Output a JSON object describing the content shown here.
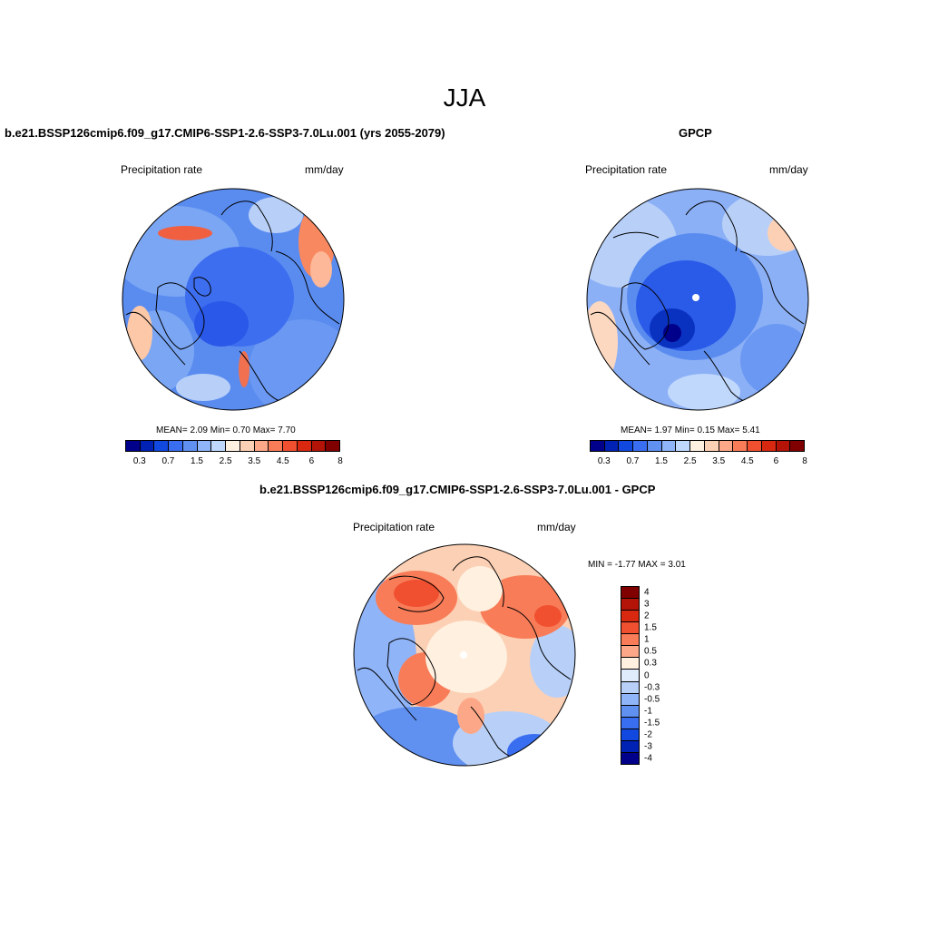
{
  "main_title": "JJA",
  "units_label": "mm/day",
  "variable_label": "Precipitation rate",
  "panels": {
    "model": {
      "title": "b.e21.BSSP126cmip6.f09_g17.CMIP6-SSP1-2.6-SSP3-7.0Lu.001 (yrs 2055-2079)",
      "left_label": "Precipitation rate",
      "right_label": "mm/day",
      "stats": "MEAN=   2.09  Min=   0.70  Max=   7.70"
    },
    "obs": {
      "title": "GPCP",
      "left_label": "Precipitation rate",
      "right_label": "mm/day",
      "stats": "MEAN=   1.97  Min=   0.15  Max=   5.41"
    },
    "diff": {
      "title": "b.e21.BSSP126cmip6.f09_g17.CMIP6-SSP1-2.6-SSP3-7.0Lu.001 - GPCP",
      "left_label": "Precipitation rate",
      "right_label": "mm/day",
      "stats": "MIN =  -1.77 MAX =   3.01"
    }
  },
  "abs_colorbar": {
    "colors": [
      "#00008b",
      "#0022b4",
      "#1048e0",
      "#3a6ef0",
      "#6090f0",
      "#90b4f8",
      "#c0d8fc",
      "#fff0e0",
      "#fcd0b4",
      "#fca888",
      "#f87c58",
      "#f05030",
      "#d82810",
      "#b41408",
      "#800000"
    ],
    "tick_labels": [
      "0.3",
      "0.7",
      "1.5",
      "2.5",
      "3.5",
      "4.5",
      "6",
      "8"
    ]
  },
  "diff_colorbar": {
    "colors": [
      "#800000",
      "#b41408",
      "#d82810",
      "#f05030",
      "#f87c58",
      "#fca888",
      "#fff0e0",
      "#e0ecfc",
      "#b8d0f8",
      "#90b4f8",
      "#6090f0",
      "#3a6ef0",
      "#1048e0",
      "#0022b4",
      "#00008b"
    ],
    "tick_labels": [
      "4",
      "3",
      "2",
      "1.5",
      "1",
      "0.5",
      "0.3",
      "0",
      "-0.3",
      "-0.5",
      "-1",
      "-1.5",
      "-2",
      "-3",
      "-4"
    ]
  }
}
